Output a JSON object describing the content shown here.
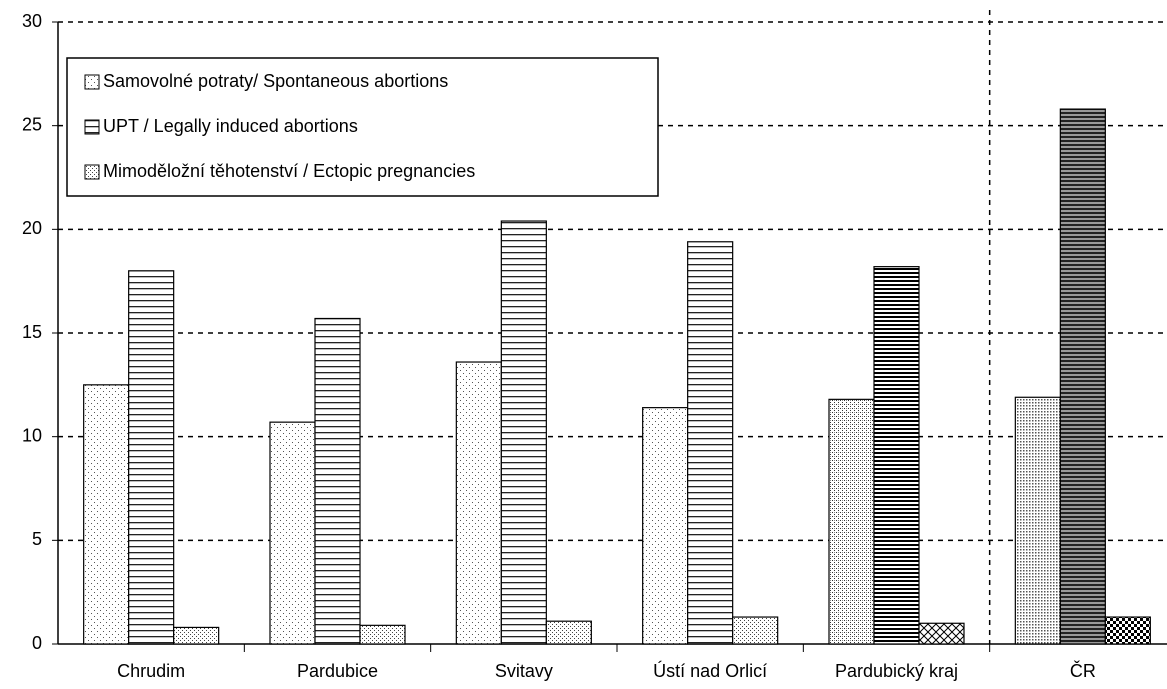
{
  "chart_data": {
    "type": "bar",
    "categories": [
      "Chrudim",
      "Pardubice",
      "Svitavy",
      "Ústí nad Orlicí",
      "Pardubický kraj",
      "ČR"
    ],
    "series": [
      {
        "name": "Samovolné potraty/ Spontaneous abortions",
        "values": [
          12.5,
          10.7,
          13.6,
          11.4,
          11.8,
          11.9
        ]
      },
      {
        "name": "UPT / Legally induced abortions",
        "values": [
          18.0,
          15.7,
          20.4,
          19.4,
          18.2,
          25.8
        ]
      },
      {
        "name": "Mimoděložní těhotenství / Ectopic pregnancies",
        "values": [
          0.8,
          0.9,
          1.1,
          1.3,
          1.0,
          1.3
        ]
      }
    ],
    "ylim": [
      0,
      30
    ],
    "yticks": [
      0,
      5,
      10,
      15,
      20,
      25,
      30
    ],
    "grid": true,
    "legend": "upper left"
  }
}
